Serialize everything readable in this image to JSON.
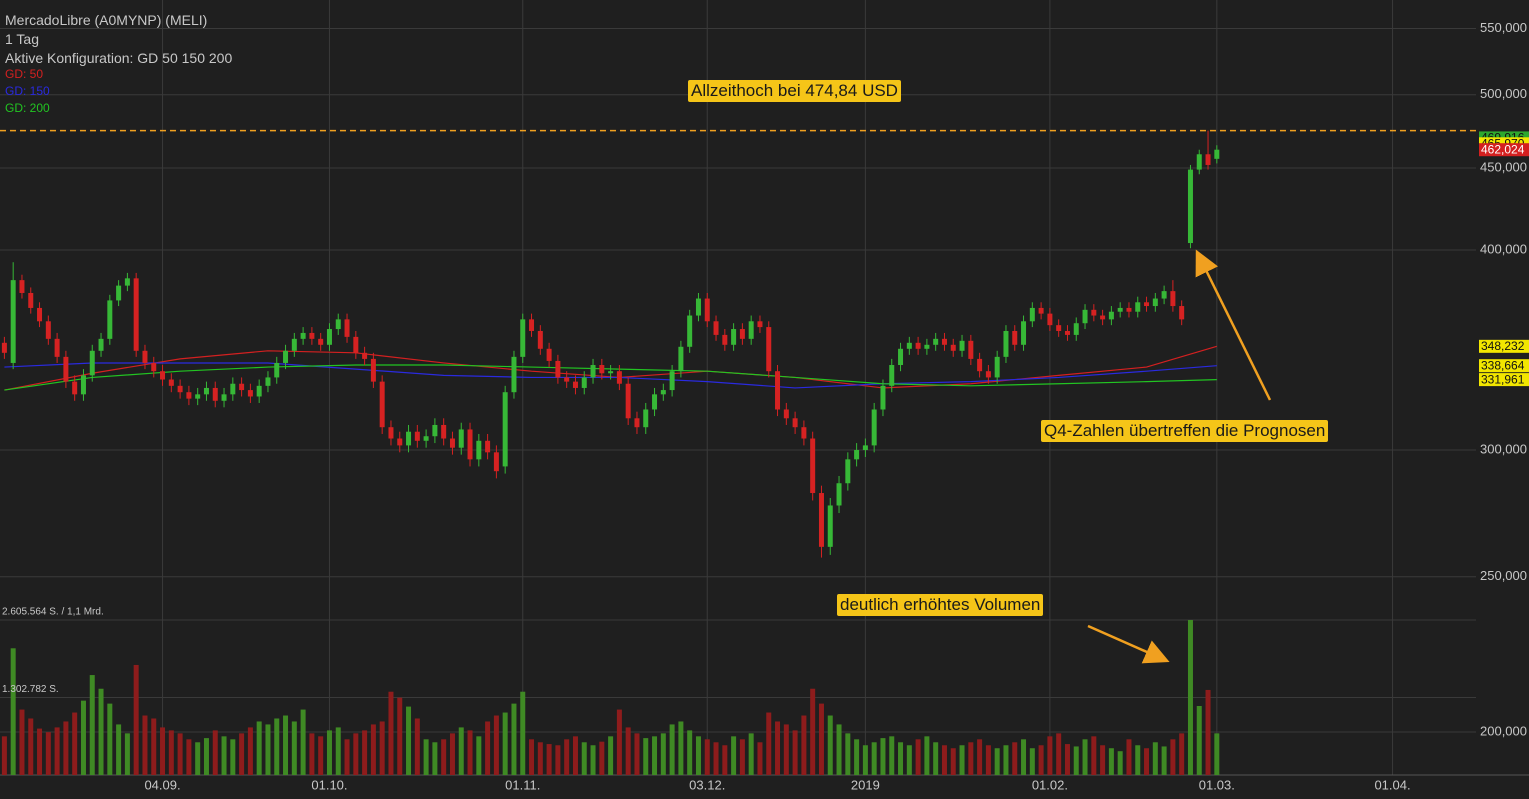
{
  "chart_data": {
    "type": "candlestick",
    "title": "MercadoLibre (A0MYNP) (MELI)",
    "subtitle": "1 Tag",
    "config_label": "Aktive Konfiguration: GD 50 150 200",
    "log_scale": true,
    "grid": true,
    "up_color": "#37b837",
    "down_color": "#d62222",
    "volume_up_color": "#3f8a24",
    "volume_down_color": "#8e1c1c",
    "ylim": [
      188,
      573
    ],
    "yticks": [
      {
        "value": 200,
        "label": "200,000"
      },
      {
        "value": 250,
        "label": "250,000"
      },
      {
        "value": 300,
        "label": "300,000"
      },
      {
        "value": 400,
        "label": "400,000"
      },
      {
        "value": 450,
        "label": "450,000"
      },
      {
        "value": 500,
        "label": "500,000"
      },
      {
        "value": 550,
        "label": "550,000"
      }
    ],
    "xlim": [
      -0.5,
      167.5
    ],
    "xticks": [
      {
        "value": 18,
        "label": "04.09."
      },
      {
        "value": 37,
        "label": "01.10."
      },
      {
        "value": 59,
        "label": "01.11."
      },
      {
        "value": 80,
        "label": "03.12."
      },
      {
        "value": 98,
        "label": "2019"
      },
      {
        "value": 119,
        "label": "01.02."
      },
      {
        "value": 138,
        "label": "01.03."
      },
      {
        "value": 158,
        "label": "01.04."
      }
    ],
    "volume_lim": [
      0,
      2605564
    ],
    "volume_ticks": [
      {
        "value": 2605564,
        "label": "2.605.564 S. / 1,1 Mrd."
      },
      {
        "value": 1302782,
        "label": "1.302.782 S."
      }
    ],
    "open": [
      350,
      340,
      383,
      376,
      368,
      361,
      352,
      343,
      331,
      325,
      334,
      346,
      352,
      372,
      380,
      384,
      346,
      340,
      336,
      332,
      329,
      326,
      323,
      325,
      328,
      322,
      325,
      330,
      327,
      324,
      329,
      333,
      340,
      346,
      352,
      355,
      352,
      349,
      357,
      362,
      353,
      345,
      342,
      331,
      310,
      305,
      302,
      308,
      304,
      306,
      311,
      305,
      301,
      309,
      296,
      304,
      299,
      293,
      326,
      343,
      362,
      356,
      347,
      341,
      333,
      331,
      328,
      333,
      339,
      335,
      336,
      330,
      314,
      310,
      318,
      325,
      327,
      336,
      348,
      364,
      373,
      361,
      354,
      349,
      357,
      352,
      361,
      358,
      336,
      318,
      314,
      310,
      305,
      282,
      261,
      277,
      286,
      296,
      300,
      302,
      318,
      329,
      339,
      347,
      350,
      347,
      349,
      352,
      349,
      346,
      351,
      342,
      336,
      333,
      343,
      356,
      349,
      361,
      368,
      365,
      359,
      356,
      354,
      360,
      367,
      364,
      362,
      366,
      368,
      366,
      371,
      369,
      373,
      377,
      369,
      404,
      449,
      459,
      456
    ],
    "high": [
      353,
      393,
      386,
      379,
      371,
      364,
      355,
      346,
      334,
      337,
      349,
      355,
      375,
      383,
      387,
      387,
      349,
      343,
      339,
      335,
      332,
      329,
      328,
      331,
      331,
      328,
      333,
      333,
      330,
      332,
      336,
      343,
      349,
      355,
      358,
      358,
      355,
      360,
      365,
      365,
      356,
      348,
      345,
      334,
      313,
      308,
      311,
      311,
      309,
      314,
      314,
      308,
      312,
      312,
      307,
      307,
      302,
      329,
      346,
      365,
      365,
      359,
      350,
      344,
      336,
      334,
      336,
      342,
      342,
      339,
      339,
      333,
      317,
      321,
      328,
      330,
      339,
      351,
      367,
      376,
      376,
      364,
      357,
      360,
      360,
      364,
      364,
      361,
      339,
      321,
      317,
      313,
      308,
      285,
      280,
      289,
      299,
      303,
      305,
      321,
      332,
      342,
      350,
      353,
      353,
      352,
      355,
      355,
      352,
      354,
      354,
      345,
      339,
      346,
      359,
      359,
      364,
      371,
      371,
      368,
      362,
      359,
      363,
      370,
      370,
      367,
      369,
      371,
      371,
      374,
      374,
      376,
      380,
      383,
      372,
      452,
      462,
      474.84,
      465
    ],
    "low": [
      342,
      337,
      373,
      365,
      358,
      349,
      340,
      328,
      322,
      322,
      331,
      343,
      349,
      369,
      377,
      343,
      337,
      333,
      329,
      326,
      323,
      320,
      320,
      322,
      319,
      319,
      322,
      324,
      321,
      321,
      326,
      330,
      337,
      343,
      349,
      349,
      346,
      346,
      354,
      350,
      342,
      339,
      328,
      307,
      302,
      299,
      299,
      301,
      301,
      303,
      302,
      298,
      298,
      293,
      293,
      296,
      288,
      290,
      323,
      340,
      353,
      344,
      338,
      330,
      328,
      325,
      325,
      330,
      332,
      332,
      327,
      311,
      307,
      307,
      315,
      322,
      324,
      333,
      345,
      361,
      358,
      351,
      346,
      346,
      349,
      349,
      355,
      333,
      315,
      311,
      307,
      302,
      279,
      257,
      258,
      274,
      283,
      293,
      297,
      299,
      315,
      326,
      336,
      344,
      344,
      344,
      346,
      346,
      343,
      343,
      339,
      333,
      330,
      330,
      340,
      346,
      346,
      358,
      362,
      356,
      353,
      351,
      351,
      357,
      361,
      359,
      359,
      363,
      363,
      363,
      366,
      366,
      370,
      366,
      359,
      401,
      446,
      449,
      453
    ],
    "close": [
      345,
      383,
      376,
      368,
      361,
      352,
      343,
      331,
      325,
      334,
      346,
      352,
      372,
      380,
      384,
      346,
      340,
      336,
      332,
      329,
      326,
      323,
      325,
      328,
      322,
      325,
      330,
      327,
      324,
      329,
      333,
      340,
      346,
      352,
      355,
      352,
      349,
      357,
      362,
      353,
      345,
      342,
      331,
      310,
      305,
      302,
      308,
      304,
      306,
      311,
      305,
      301,
      309,
      296,
      304,
      299,
      291,
      326,
      343,
      362,
      356,
      347,
      341,
      333,
      331,
      328,
      333,
      339,
      335,
      336,
      330,
      314,
      310,
      318,
      325,
      327,
      336,
      348,
      364,
      373,
      361,
      354,
      349,
      357,
      352,
      361,
      358,
      336,
      318,
      314,
      310,
      305,
      282,
      261,
      277,
      286,
      296,
      300,
      302,
      318,
      329,
      339,
      347,
      350,
      347,
      349,
      352,
      349,
      346,
      351,
      342,
      336,
      333,
      343,
      356,
      349,
      361,
      368,
      365,
      359,
      356,
      354,
      360,
      367,
      364,
      362,
      366,
      368,
      366,
      371,
      369,
      373,
      377,
      369,
      362,
      449,
      459,
      452,
      462.024
    ],
    "volume": [
      650000,
      2130000,
      1100000,
      950000,
      780000,
      720000,
      800000,
      900000,
      1050000,
      1250000,
      1680000,
      1450000,
      1200000,
      850000,
      700000,
      1850000,
      1000000,
      950000,
      800000,
      750000,
      700000,
      600000,
      550000,
      620000,
      750000,
      650000,
      600000,
      700000,
      800000,
      900000,
      850000,
      950000,
      1000000,
      900000,
      1100000,
      700000,
      650000,
      750000,
      800000,
      600000,
      700000,
      750000,
      850000,
      900000,
      1400000,
      1300000,
      1150000,
      950000,
      600000,
      550000,
      600000,
      700000,
      800000,
      750000,
      650000,
      900000,
      1000000,
      1050000,
      1200000,
      1400000,
      600000,
      550000,
      520000,
      500000,
      600000,
      650000,
      550000,
      500000,
      560000,
      650000,
      1100000,
      800000,
      700000,
      620000,
      650000,
      700000,
      850000,
      900000,
      750000,
      650000,
      600000,
      550000,
      500000,
      650000,
      600000,
      700000,
      550000,
      1050000,
      900000,
      850000,
      750000,
      1000000,
      1450000,
      1200000,
      1000000,
      850000,
      700000,
      600000,
      500000,
      550000,
      620000,
      650000,
      550000,
      500000,
      600000,
      650000,
      550000,
      500000,
      450000,
      500000,
      550000,
      600000,
      500000,
      450000,
      500000,
      550000,
      600000,
      450000,
      500000,
      650000,
      700000,
      520000,
      480000,
      600000,
      650000,
      500000,
      450000,
      400000,
      600000,
      500000,
      450000,
      550000,
      480000,
      600000,
      700000,
      2605564,
      1160000,
      1430000,
      700000
    ],
    "series": [
      {
        "name": "GD: 50",
        "color": "#d42020",
        "x": [
          0,
          10,
          20,
          30,
          40,
          50,
          60,
          70,
          80,
          90,
          100,
          110,
          120,
          130,
          138
        ],
        "values": [
          327,
          335,
          342,
          346,
          345,
          340,
          336,
          333,
          336,
          333,
          328,
          330,
          334,
          338,
          348.232
        ]
      },
      {
        "name": "GD: 150",
        "color": "#2a2ae0",
        "x": [
          0,
          10,
          20,
          30,
          40,
          50,
          60,
          70,
          80,
          90,
          100,
          110,
          120,
          130,
          138
        ],
        "values": [
          338,
          340,
          340,
          340,
          337,
          334,
          333,
          333,
          331,
          328,
          330,
          331,
          333,
          336,
          338.664
        ]
      },
      {
        "name": "GD: 200",
        "color": "#22c422",
        "x": [
          0,
          10,
          20,
          30,
          40,
          50,
          60,
          70,
          80,
          90,
          100,
          110,
          120,
          130,
          138
        ],
        "values": [
          327,
          333,
          336,
          338,
          339,
          339,
          338,
          337,
          336,
          333,
          330,
          329,
          330,
          331,
          331.961
        ]
      }
    ],
    "reference_line": 474.84,
    "price_labels": [
      {
        "value": 469.916,
        "label": "469,916",
        "color": "#2ea82e"
      },
      {
        "value": 465.97,
        "label": "465,970",
        "color": "#f2e600"
      },
      {
        "value": 462.024,
        "label": "462,024",
        "color": "#d42020"
      },
      {
        "value": 348.232,
        "label": "348,232",
        "color": "#f2e600"
      },
      {
        "value": 338.664,
        "label": "338,664",
        "color": "#f2e600"
      },
      {
        "value": 331.961,
        "label": "331,961",
        "color": "#f2e600"
      }
    ],
    "annotations": [
      {
        "text": "Allzeithoch bei 474,84 USD"
      },
      {
        "text": "Q4-Zahlen übertreffen die Prognosen"
      },
      {
        "text": "deutlich erhöhtes Volumen"
      }
    ]
  }
}
